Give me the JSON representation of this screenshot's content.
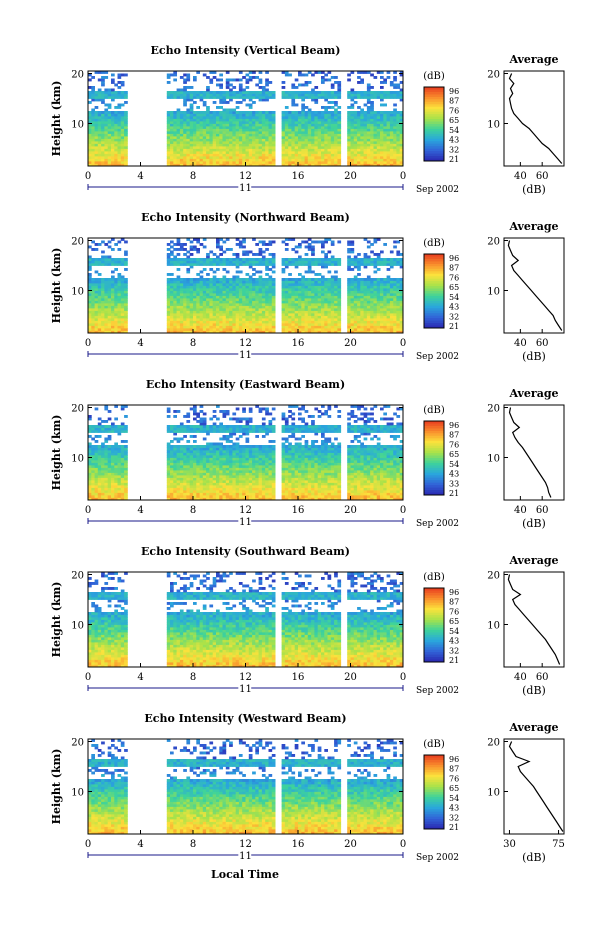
{
  "figure": {
    "xlabel_bottom": "Local Time",
    "colorbar_ticks": [
      "96",
      "87",
      "76",
      "65",
      "54",
      "43",
      "32",
      "21"
    ],
    "colorbar_ticks_alt": [
      "96",
      "87",
      "76",
      "65",
      "54",
      "43",
      "33",
      "21"
    ],
    "colorbar_ticks_alt2": [
      "96",
      "87",
      "76",
      "65",
      "54",
      "43",
      "32",
      "21"
    ]
  },
  "chart_data": [
    {
      "type": "heatmap",
      "title": "Echo Intensity (Vertical Beam)",
      "ylabel": "Height (km)",
      "colorbar_label": "(dB)",
      "colorbar_ticks": [
        "96",
        "87",
        "76",
        "65",
        "54",
        "43",
        "32",
        "21"
      ],
      "xticks": [
        "0",
        "4",
        "8",
        "12",
        "16",
        "20",
        "0"
      ],
      "yticks": [
        "20",
        "10"
      ],
      "date_label": "Sep 2002",
      "day_label": "11",
      "xlim": [
        0,
        24
      ],
      "ylim": [
        1.5,
        20.5
      ],
      "gaps_hours": [
        [
          3,
          6
        ],
        [
          14.3,
          14.7
        ],
        [
          19.3,
          19.7
        ]
      ],
      "profile": {
        "title": "Average",
        "xlabel": "(dB)",
        "xticks": [
          "40",
          "60"
        ],
        "yticks": [
          "20",
          "10"
        ],
        "height_km": [
          20,
          19,
          18,
          17,
          16,
          15,
          14,
          13,
          12,
          11,
          10,
          9,
          8,
          7,
          6,
          5,
          4,
          3,
          2
        ],
        "value_db": [
          32,
          30,
          34,
          31,
          33,
          30,
          31,
          32,
          34,
          38,
          42,
          48,
          52,
          56,
          60,
          66,
          70,
          74,
          78
        ]
      }
    },
    {
      "type": "heatmap",
      "title": "Echo Intensity (Northward Beam)",
      "ylabel": "Height (km)",
      "colorbar_label": "(dB)",
      "colorbar_ticks": [
        "96",
        "87",
        "76",
        "65",
        "54",
        "43",
        "32",
        "21"
      ],
      "xticks": [
        "0",
        "4",
        "8",
        "12",
        "16",
        "20",
        "0"
      ],
      "yticks": [
        "20",
        "10"
      ],
      "date_label": "Sep 2002",
      "day_label": "11",
      "xlim": [
        0,
        24
      ],
      "ylim": [
        1.5,
        20.5
      ],
      "gaps_hours": [
        [
          3,
          6
        ],
        [
          14.3,
          14.7
        ],
        [
          19.3,
          19.7
        ]
      ],
      "profile": {
        "title": "Average",
        "xlabel": "(dB)",
        "xticks": [
          "40",
          "60"
        ],
        "yticks": [
          "20",
          "10"
        ],
        "height_km": [
          20,
          19,
          18,
          17,
          16,
          15,
          14,
          13,
          12,
          11,
          10,
          9,
          8,
          7,
          6,
          5,
          4,
          3,
          2
        ],
        "value_db": [
          30,
          29,
          31,
          33,
          38,
          32,
          34,
          38,
          42,
          46,
          50,
          54,
          58,
          62,
          66,
          70,
          72,
          75,
          78
        ]
      }
    },
    {
      "type": "heatmap",
      "title": "Echo Intensity (Eastward Beam)",
      "ylabel": "Height (km)",
      "colorbar_label": "(dB)",
      "colorbar_ticks": [
        "96",
        "87",
        "76",
        "65",
        "54",
        "43",
        "33",
        "21"
      ],
      "xticks": [
        "0",
        "4",
        "8",
        "12",
        "16",
        "20",
        "0"
      ],
      "yticks": [
        "20",
        "10"
      ],
      "date_label": "Sep 2002",
      "day_label": "11",
      "xlim": [
        0,
        24
      ],
      "ylim": [
        1.5,
        20.5
      ],
      "gaps_hours": [
        [
          3,
          6
        ],
        [
          14.3,
          14.7
        ],
        [
          19.3,
          19.7
        ]
      ],
      "profile": {
        "title": "Average",
        "xlabel": "(dB)",
        "xticks": [
          "40",
          "60"
        ],
        "yticks": [
          "20",
          "10"
        ],
        "height_km": [
          20,
          19,
          18,
          17,
          16,
          15,
          14,
          13,
          12,
          11,
          10,
          9,
          8,
          7,
          6,
          5,
          4,
          3,
          2
        ],
        "value_db": [
          31,
          30,
          32,
          34,
          39,
          33,
          35,
          38,
          42,
          45,
          48,
          51,
          54,
          57,
          60,
          63,
          65,
          66,
          68
        ]
      }
    },
    {
      "type": "heatmap",
      "title": "Echo Intensity (Southward Beam)",
      "ylabel": "Height (km)",
      "colorbar_label": "(dB)",
      "colorbar_ticks": [
        "96",
        "87",
        "76",
        "65",
        "54",
        "43",
        "32",
        "21"
      ],
      "xticks": [
        "0",
        "4",
        "8",
        "12",
        "16",
        "20",
        "0"
      ],
      "yticks": [
        "20",
        "10"
      ],
      "date_label": "Sep 2002",
      "day_label": "11",
      "xlim": [
        0,
        24
      ],
      "ylim": [
        1.5,
        20.5
      ],
      "gaps_hours": [
        [
          3,
          6
        ],
        [
          14.3,
          14.7
        ],
        [
          19.3,
          19.7
        ]
      ],
      "profile": {
        "title": "Average",
        "xlabel": "(dB)",
        "xticks": [
          "40",
          "60"
        ],
        "yticks": [
          "20",
          "10"
        ],
        "height_km": [
          20,
          19,
          18,
          17,
          16,
          15,
          14,
          13,
          12,
          11,
          10,
          9,
          8,
          7,
          6,
          5,
          4,
          3,
          2
        ],
        "value_db": [
          30,
          29,
          31,
          33,
          40,
          33,
          35,
          39,
          43,
          47,
          51,
          55,
          59,
          63,
          66,
          69,
          72,
          74,
          76
        ]
      }
    },
    {
      "type": "heatmap",
      "title": "Echo Intensity (Westward Beam)",
      "ylabel": "Height (km)",
      "colorbar_label": "(dB)",
      "colorbar_ticks": [
        "96",
        "87",
        "76",
        "65",
        "54",
        "43",
        "32",
        "21"
      ],
      "xticks": [
        "0",
        "4",
        "8",
        "12",
        "16",
        "20",
        "0"
      ],
      "yticks": [
        "20",
        "10"
      ],
      "date_label": "Sep 2002",
      "day_label": "11",
      "xlim": [
        0,
        24
      ],
      "ylim": [
        1.5,
        20.5
      ],
      "gaps_hours": [
        [
          3,
          6
        ],
        [
          14.3,
          14.7
        ],
        [
          19.3,
          19.7
        ]
      ],
      "profile": {
        "title": "Average",
        "xlabel": "(dB)",
        "xticks": [
          "30",
          "75"
        ],
        "yticks": [
          "20",
          "10"
        ],
        "height_km": [
          20,
          19,
          18,
          17,
          16,
          15,
          14,
          13,
          12,
          11,
          10,
          9,
          8,
          7,
          6,
          5,
          4,
          3,
          2
        ],
        "value_db": [
          32,
          30,
          33,
          36,
          48,
          38,
          40,
          44,
          48,
          52,
          55,
          58,
          61,
          64,
          67,
          70,
          73,
          76,
          79
        ]
      }
    }
  ]
}
